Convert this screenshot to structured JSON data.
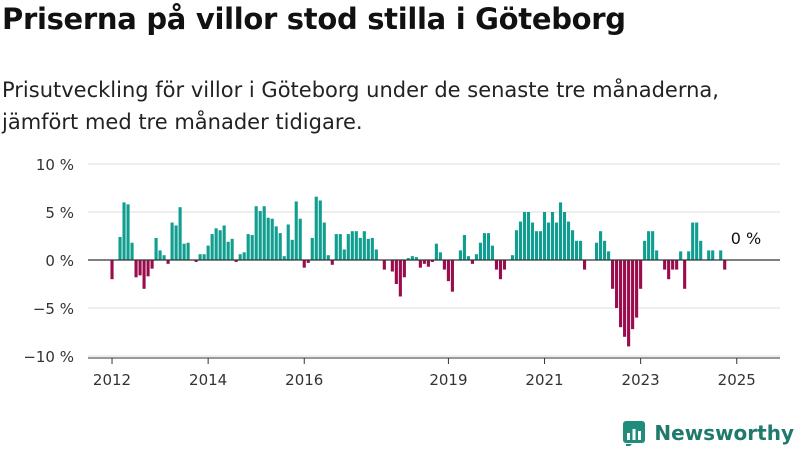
{
  "title": "Priserna på villor stod stilla i Göteborg",
  "subtitle": "Prisutveckling för villor i Göteborg under de senaste tre månaderna, jämfört med tre månader tidigare.",
  "brand": {
    "name": "Newsworthy",
    "icon": "newsworthy-logo-icon",
    "color": "#1f8c7c"
  },
  "chart_data": {
    "type": "bar",
    "title": "",
    "xlabel": "",
    "ylabel": "",
    "ylim": [
      -10,
      10
    ],
    "xlim": [
      2011.5,
      2025.9
    ],
    "y_ticks": [
      10,
      5,
      0,
      -5,
      -10
    ],
    "y_tick_labels": [
      "10 %",
      "5 %",
      "0 %",
      "−5 %",
      "−10 %"
    ],
    "x_ticks": [
      2012,
      2014,
      2016,
      2019,
      2021,
      2023,
      2025
    ],
    "x_tick_labels": [
      "2012",
      "2014",
      "2016",
      "2019",
      "2021",
      "2023",
      "2025"
    ],
    "grid": true,
    "legend": "none",
    "colors": {
      "positive": "#0f9e8f",
      "negative": "#9a0c4c",
      "grid": "#dcdcdc",
      "axis": "#333333"
    },
    "annotation": {
      "x": 2025.0,
      "y": 0,
      "text": "0 %"
    },
    "x_start": 2012.0,
    "x_step": 0.08333,
    "values": [
      -2,
      0,
      2.4,
      6,
      5.8,
      1.8,
      -1.8,
      -1.6,
      -3,
      -1.7,
      -0.9,
      2.3,
      1,
      0.5,
      -0.4,
      3.9,
      3.6,
      5.5,
      1.7,
      1.8,
      0,
      -0.2,
      0.6,
      0.6,
      1.5,
      2.7,
      3.3,
      3.1,
      3.6,
      1.9,
      2.2,
      -0.2,
      0.6,
      0.8,
      2.7,
      2.6,
      5.6,
      5.1,
      5.6,
      4.4,
      4.3,
      3.5,
      2.8,
      0.4,
      3.7,
      2.1,
      6.1,
      4.3,
      -0.8,
      -0.3,
      2.3,
      6.6,
      6.2,
      3.9,
      0.5,
      -0.5,
      2.7,
      2.7,
      1.1,
      2.7,
      3,
      3,
      2.3,
      3,
      2.2,
      2.3,
      1.1,
      0,
      -1,
      0,
      -1.2,
      -2.5,
      -3.8,
      -1.8,
      0.2,
      0.4,
      0.3,
      -0.8,
      -0.4,
      -0.7,
      -0.2,
      1.7,
      0.8,
      -1,
      -2.2,
      -3.3,
      0,
      1,
      2.6,
      0.4,
      -0.4,
      0.6,
      1.8,
      2.8,
      2.8,
      1.5,
      -1,
      -2,
      -1,
      0,
      0.5,
      3.1,
      4,
      5,
      5,
      3.9,
      3,
      3,
      5,
      3.9,
      5,
      3.9,
      6,
      5,
      4,
      3.1,
      2,
      2,
      -1,
      0,
      0,
      1.8,
      3,
      2,
      0.9,
      -3,
      -5,
      -7,
      -8,
      -9,
      -7.2,
      -6,
      -3,
      2,
      3,
      3,
      1,
      0,
      -1,
      -2,
      -1,
      -1,
      0.9,
      -3,
      0.9,
      3.9,
      3.9,
      2,
      0,
      1,
      1,
      0,
      1,
      -1
    ]
  }
}
